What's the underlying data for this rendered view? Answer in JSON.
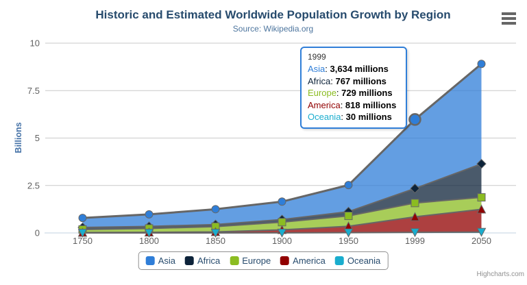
{
  "colors": {
    "title": "#274b6d",
    "subtitle": "#4d759e",
    "axis_label": "#606060",
    "yaxis_title": "#4572A7",
    "legend_text": "#274b6d",
    "grid_line": "#C9C9C9",
    "axis_line": "#C0D0E0",
    "series_outline": "#666666",
    "tooltip_border": "#2f7ed8"
  },
  "export_menu": {
    "icon": "hamburger-menu-icon"
  },
  "credits": {
    "label": "Highcharts.com"
  },
  "chart_data": {
    "type": "area",
    "stacked": true,
    "stack_order": "first-series-on-top",
    "title": "Historic and Estimated Worldwide Population Growth by Region",
    "subtitle": "Source: Wikipedia.org",
    "xlabel": "",
    "ylabel": "Billions",
    "categories": [
      "1750",
      "1800",
      "1850",
      "1900",
      "1950",
      "1999",
      "2050"
    ],
    "ylim": [
      0,
      10
    ],
    "yticks": [
      0,
      2.5,
      5,
      7.5,
      10
    ],
    "ytick_labels": [
      "0",
      "2.5",
      "5",
      "7.5",
      "10"
    ],
    "unit": "millions",
    "grid": "horizontal-only",
    "legend_position": "bottom",
    "series": [
      {
        "name": "Asia",
        "color": "#2f7ed8",
        "marker": "circle",
        "values_millions": [
          502,
          635,
          809,
          947,
          1402,
          3634,
          5268
        ]
      },
      {
        "name": "Africa",
        "color": "#0d233a",
        "marker": "diamond",
        "values_millions": [
          106,
          107,
          111,
          133,
          221,
          767,
          1766
        ]
      },
      {
        "name": "Europe",
        "color": "#8bbc21",
        "marker": "square",
        "values_millions": [
          163,
          203,
          276,
          408,
          547,
          729,
          628
        ]
      },
      {
        "name": "America",
        "color": "#910000",
        "marker": "triangle-up",
        "values_millions": [
          18,
          31,
          54,
          156,
          339,
          818,
          1201
        ]
      },
      {
        "name": "Oceania",
        "color": "#1aadce",
        "marker": "triangle-down",
        "values_millions": [
          2,
          2,
          2,
          6,
          13,
          30,
          46
        ]
      }
    ]
  },
  "tooltip": {
    "header": "1999",
    "hovered_series": "Asia",
    "hovered_category": "1999",
    "rows": [
      {
        "name": "Asia",
        "value": "3,634 millions"
      },
      {
        "name": "Africa",
        "value": "767 millions"
      },
      {
        "name": "Europe",
        "value": "729 millions"
      },
      {
        "name": "America",
        "value": "818 millions"
      },
      {
        "name": "Oceania",
        "value": "30 millions"
      }
    ]
  },
  "legend": {
    "items": [
      "Asia",
      "Africa",
      "Europe",
      "America",
      "Oceania"
    ]
  }
}
